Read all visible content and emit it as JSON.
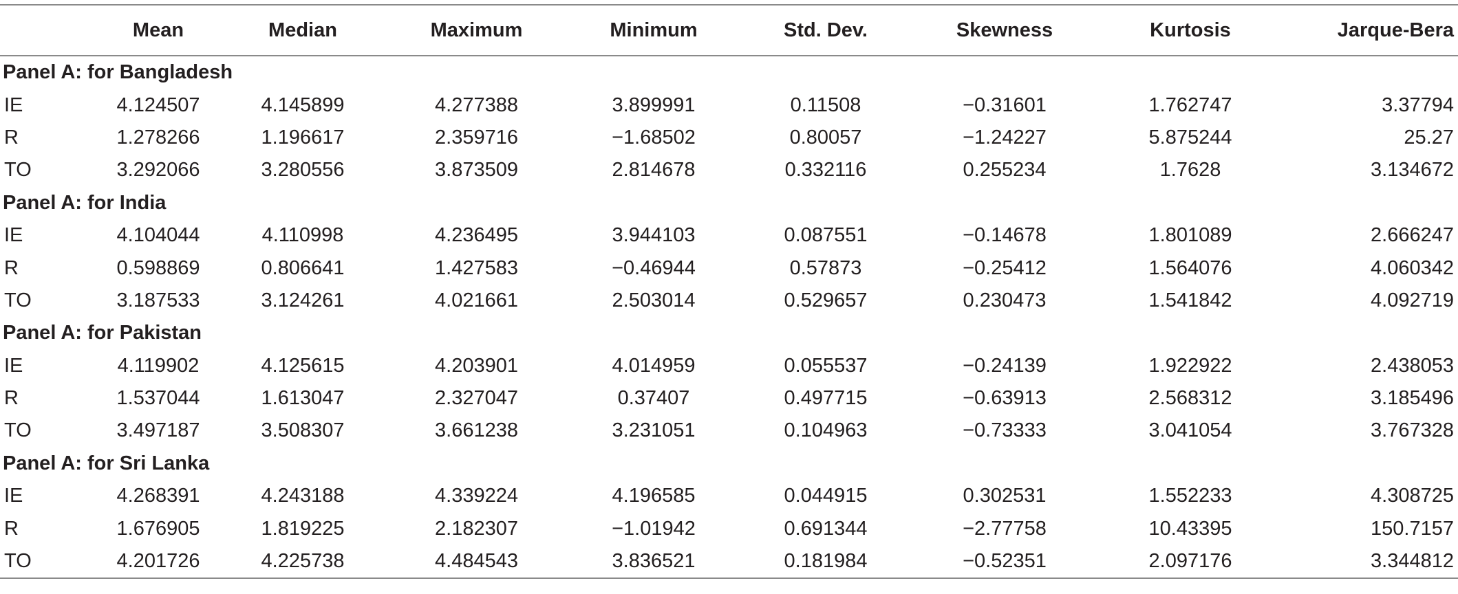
{
  "table": {
    "columns": [
      "",
      "Mean",
      "Median",
      "Maximum",
      "Minimum",
      "Std. Dev.",
      "Skewness",
      "Kurtosis",
      "Jarque-Bera"
    ],
    "panels": [
      {
        "title": "Panel A: for Bangladesh",
        "rows": [
          {
            "label": "IE",
            "values": [
              "4.124507",
              "4.145899",
              "4.277388",
              "3.899991",
              "0.11508",
              "−0.31601",
              "1.762747",
              "3.37794"
            ]
          },
          {
            "label": "R",
            "values": [
              "1.278266",
              "1.196617",
              "2.359716",
              "−1.68502",
              "0.80057",
              "−1.24227",
              "5.875244",
              "25.27"
            ]
          },
          {
            "label": "TO",
            "values": [
              "3.292066",
              "3.280556",
              "3.873509",
              "2.814678",
              "0.332116",
              "0.255234",
              "1.7628",
              "3.134672"
            ]
          }
        ]
      },
      {
        "title": "Panel A: for India",
        "rows": [
          {
            "label": "IE",
            "values": [
              "4.104044",
              "4.110998",
              "4.236495",
              "3.944103",
              "0.087551",
              "−0.14678",
              "1.801089",
              "2.666247"
            ]
          },
          {
            "label": "R",
            "values": [
              "0.598869",
              "0.806641",
              "1.427583",
              "−0.46944",
              "0.57873",
              "−0.25412",
              "1.564076",
              "4.060342"
            ]
          },
          {
            "label": "TO",
            "values": [
              "3.187533",
              "3.124261",
              "4.021661",
              "2.503014",
              "0.529657",
              "0.230473",
              "1.541842",
              "4.092719"
            ]
          }
        ]
      },
      {
        "title": "Panel A: for Pakistan",
        "rows": [
          {
            "label": "IE",
            "values": [
              "4.119902",
              "4.125615",
              "4.203901",
              "4.014959",
              "0.055537",
              "−0.24139",
              "1.922922",
              "2.438053"
            ]
          },
          {
            "label": "R",
            "values": [
              "1.537044",
              "1.613047",
              "2.327047",
              "0.37407",
              "0.497715",
              "−0.63913",
              "2.568312",
              "3.185496"
            ]
          },
          {
            "label": "TO",
            "values": [
              "3.497187",
              "3.508307",
              "3.661238",
              "3.231051",
              "0.104963",
              "−0.73333",
              "3.041054",
              "3.767328"
            ]
          }
        ]
      },
      {
        "title": "Panel A: for Sri Lanka",
        "rows": [
          {
            "label": "IE",
            "values": [
              "4.268391",
              "4.243188",
              "4.339224",
              "4.196585",
              "0.044915",
              "0.302531",
              "1.552233",
              "4.308725"
            ]
          },
          {
            "label": "R",
            "values": [
              "1.676905",
              "1.819225",
              "2.182307",
              "−1.01942",
              "0.691344",
              "−2.77758",
              "10.43395",
              "150.7157"
            ]
          },
          {
            "label": "TO",
            "values": [
              "4.201726",
              "4.225738",
              "4.484543",
              "3.836521",
              "0.181984",
              "−0.52351",
              "2.097176",
              "3.344812"
            ]
          }
        ]
      }
    ]
  }
}
